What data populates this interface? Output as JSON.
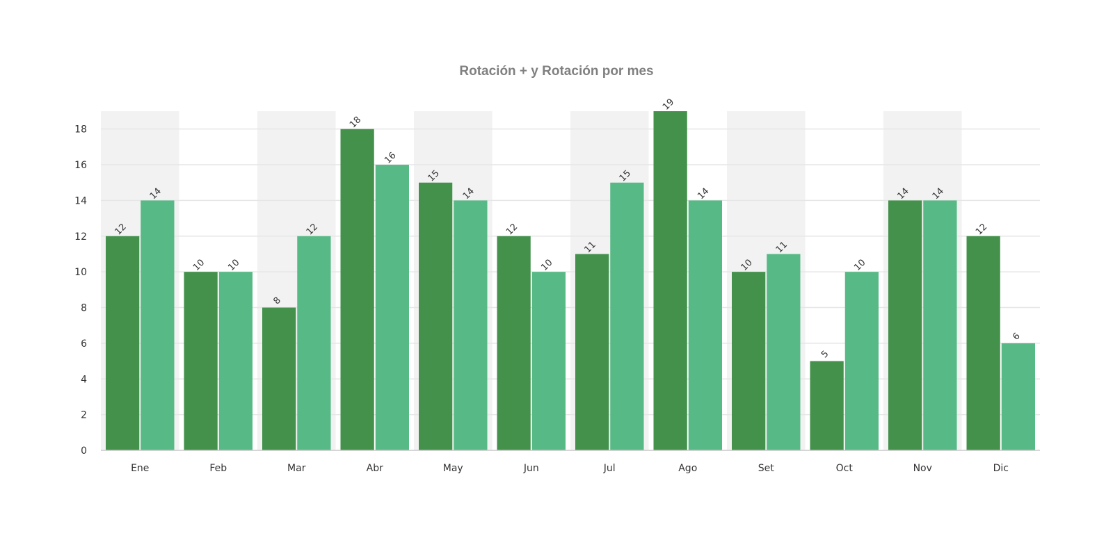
{
  "chart_data": {
    "type": "bar",
    "title": "Rotación + y Rotación por mes",
    "xlabel": "",
    "ylabel": "",
    "categories": [
      "Ene",
      "Feb",
      "Mar",
      "Abr",
      "May",
      "Jun",
      "Jul",
      "Ago",
      "Set",
      "Oct",
      "Nov",
      "Dic"
    ],
    "series": [
      {
        "values": [
          12,
          10,
          8,
          18,
          15,
          12,
          11,
          19,
          10,
          5,
          14,
          12
        ],
        "color": "#43914b"
      },
      {
        "values": [
          14,
          10,
          12,
          16,
          14,
          10,
          15,
          14,
          11,
          10,
          14,
          6
        ],
        "color": "#57ba86"
      }
    ],
    "ylim": [
      0,
      19
    ],
    "yticks": [
      "0",
      "2",
      "4",
      "6",
      "8",
      "10",
      "12",
      "14",
      "16",
      "18"
    ],
    "grid": true,
    "alternating_band_color": "#f2f2f2",
    "gridline_color": "#e6e6e6",
    "data_labels": true,
    "legend": "none"
  }
}
